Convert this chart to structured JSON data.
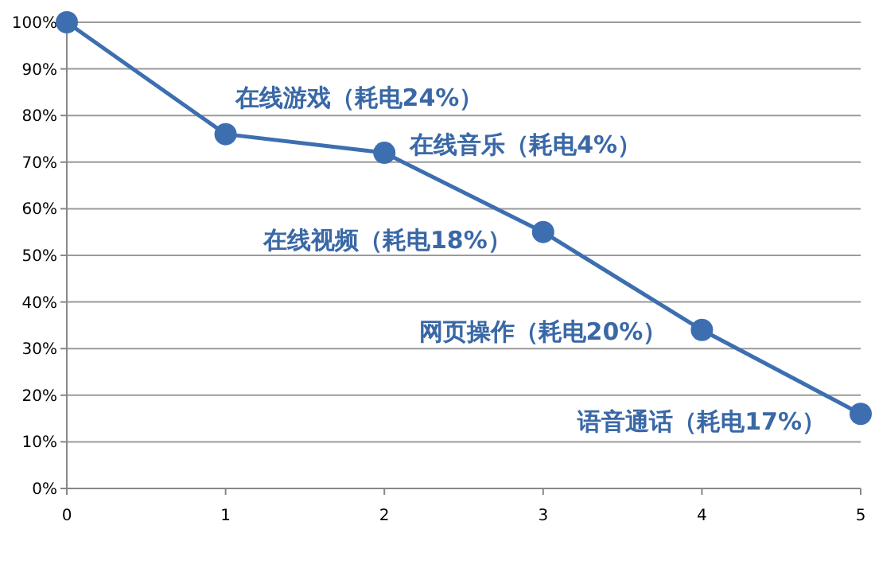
{
  "chart_data": {
    "type": "line",
    "x": [
      0,
      1,
      2,
      3,
      4,
      5
    ],
    "series": [
      {
        "color": "#3d6fb0",
        "values": [
          100,
          76,
          72,
          55,
          34,
          16
        ]
      }
    ],
    "xlim": [
      0,
      5
    ],
    "xticks": [
      0,
      1,
      2,
      3,
      4,
      5
    ],
    "ylim": [
      0,
      100
    ],
    "yticks": [
      {
        "value": 0,
        "label": "0%"
      },
      {
        "value": 10,
        "label": "10%"
      },
      {
        "value": 20,
        "label": "20%"
      },
      {
        "value": 30,
        "label": "30%"
      },
      {
        "value": 40,
        "label": "40%"
      },
      {
        "value": 50,
        "label": "50%"
      },
      {
        "value": 60,
        "label": "60%"
      },
      {
        "value": 70,
        "label": "70%"
      },
      {
        "value": 80,
        "label": "80%"
      },
      {
        "value": 90,
        "label": "90%"
      },
      {
        "value": 100,
        "label": "100%"
      }
    ],
    "grid": "y",
    "marker": "circle",
    "line_style": "solid",
    "annotations": [
      {
        "text": "在线游戏（耗电24%）",
        "x": 1,
        "y": 76
      },
      {
        "text": "在线音乐（耗电4%）",
        "x": 2,
        "y": 72
      },
      {
        "text": "在线视频（耗电18%）",
        "x": 3,
        "y": 55
      },
      {
        "text": "网页操作（耗电20%）",
        "x": 4,
        "y": 34
      },
      {
        "text": "语音通话（耗电17%）",
        "x": 5,
        "y": 16
      }
    ]
  }
}
